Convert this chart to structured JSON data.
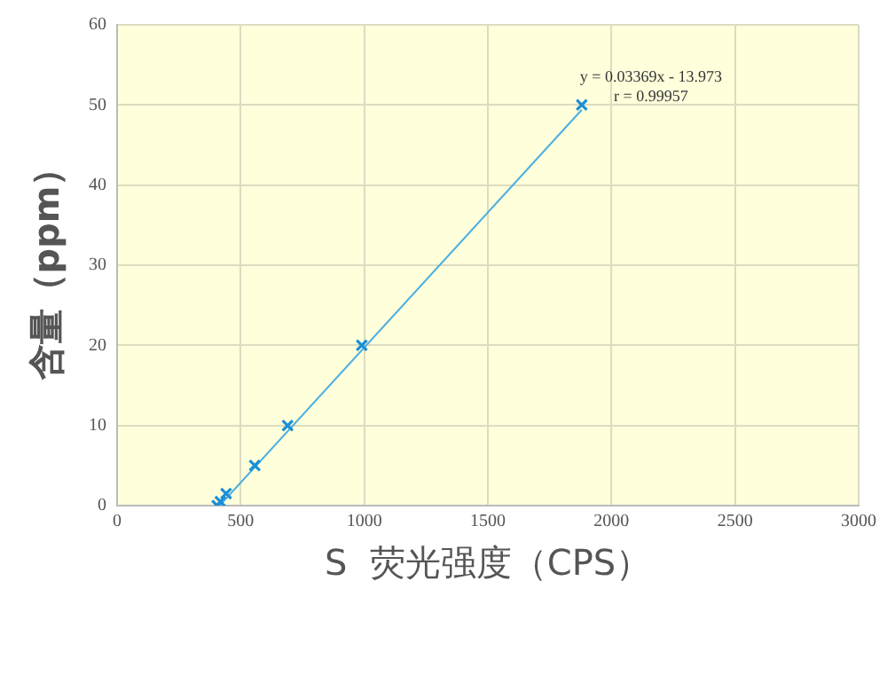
{
  "chart_data": {
    "type": "scatter",
    "xlabel": "S  荧光强度（CPS）",
    "ylabel": "含量（ppm）",
    "series": [
      {
        "color": "#1a8fd6",
        "marker": "cross",
        "x": [
          405,
          418,
          441,
          557,
          690,
          990,
          1880
        ],
        "values": [
          0,
          0.5,
          1.5,
          5,
          10,
          20,
          50
        ]
      },
      {
        "type": "line",
        "color": "#4aaee0",
        "marker": "none",
        "x": [
          415,
          1880
        ],
        "values": [
          0,
          49.4
        ]
      }
    ],
    "xlim": [
      0,
      3000
    ],
    "xticks": [
      0,
      500,
      1000,
      1500,
      2000,
      2500,
      3000
    ],
    "ylim": [
      0,
      60
    ],
    "yticks": [
      0,
      10,
      20,
      30,
      40,
      50,
      60
    ],
    "grid": true,
    "legend": false,
    "annotations": [
      "y = 0.03369x - 13.973",
      "r = 0.99957"
    ]
  }
}
